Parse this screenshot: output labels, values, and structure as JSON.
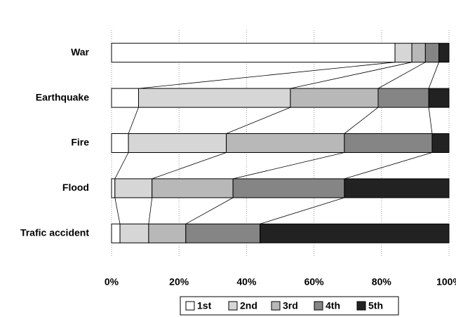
{
  "chart_data": {
    "type": "stacked-bar-horizontal",
    "categories": [
      "War",
      "Earthquake",
      "Fire",
      "Flood",
      "Trafic accident"
    ],
    "series": [
      {
        "name": "1st",
        "color": "#ffffff",
        "values": [
          84,
          8,
          5,
          1,
          2.5
        ]
      },
      {
        "name": "2nd",
        "color": "#d6d6d6",
        "values": [
          5,
          45,
          29,
          11,
          8.5
        ]
      },
      {
        "name": "3rd",
        "color": "#b8b8b8",
        "values": [
          4,
          26,
          35,
          24,
          11
        ]
      },
      {
        "name": "4th",
        "color": "#858585",
        "values": [
          4,
          15,
          26,
          33,
          22
        ]
      },
      {
        "name": "5th",
        "color": "#222222",
        "values": [
          3,
          6,
          5,
          31,
          56
        ]
      }
    ],
    "xlim": [
      0,
      100
    ],
    "xticks": [
      {
        "value": 0,
        "label": "0%"
      },
      {
        "value": 20,
        "label": "20%"
      },
      {
        "value": 40,
        "label": "40%"
      },
      {
        "value": 60,
        "label": "60%"
      },
      {
        "value": 80,
        "label": "80%"
      },
      {
        "value": 100,
        "label": "100%"
      }
    ],
    "grid": true,
    "series_lines": true,
    "legend": "bottom"
  }
}
